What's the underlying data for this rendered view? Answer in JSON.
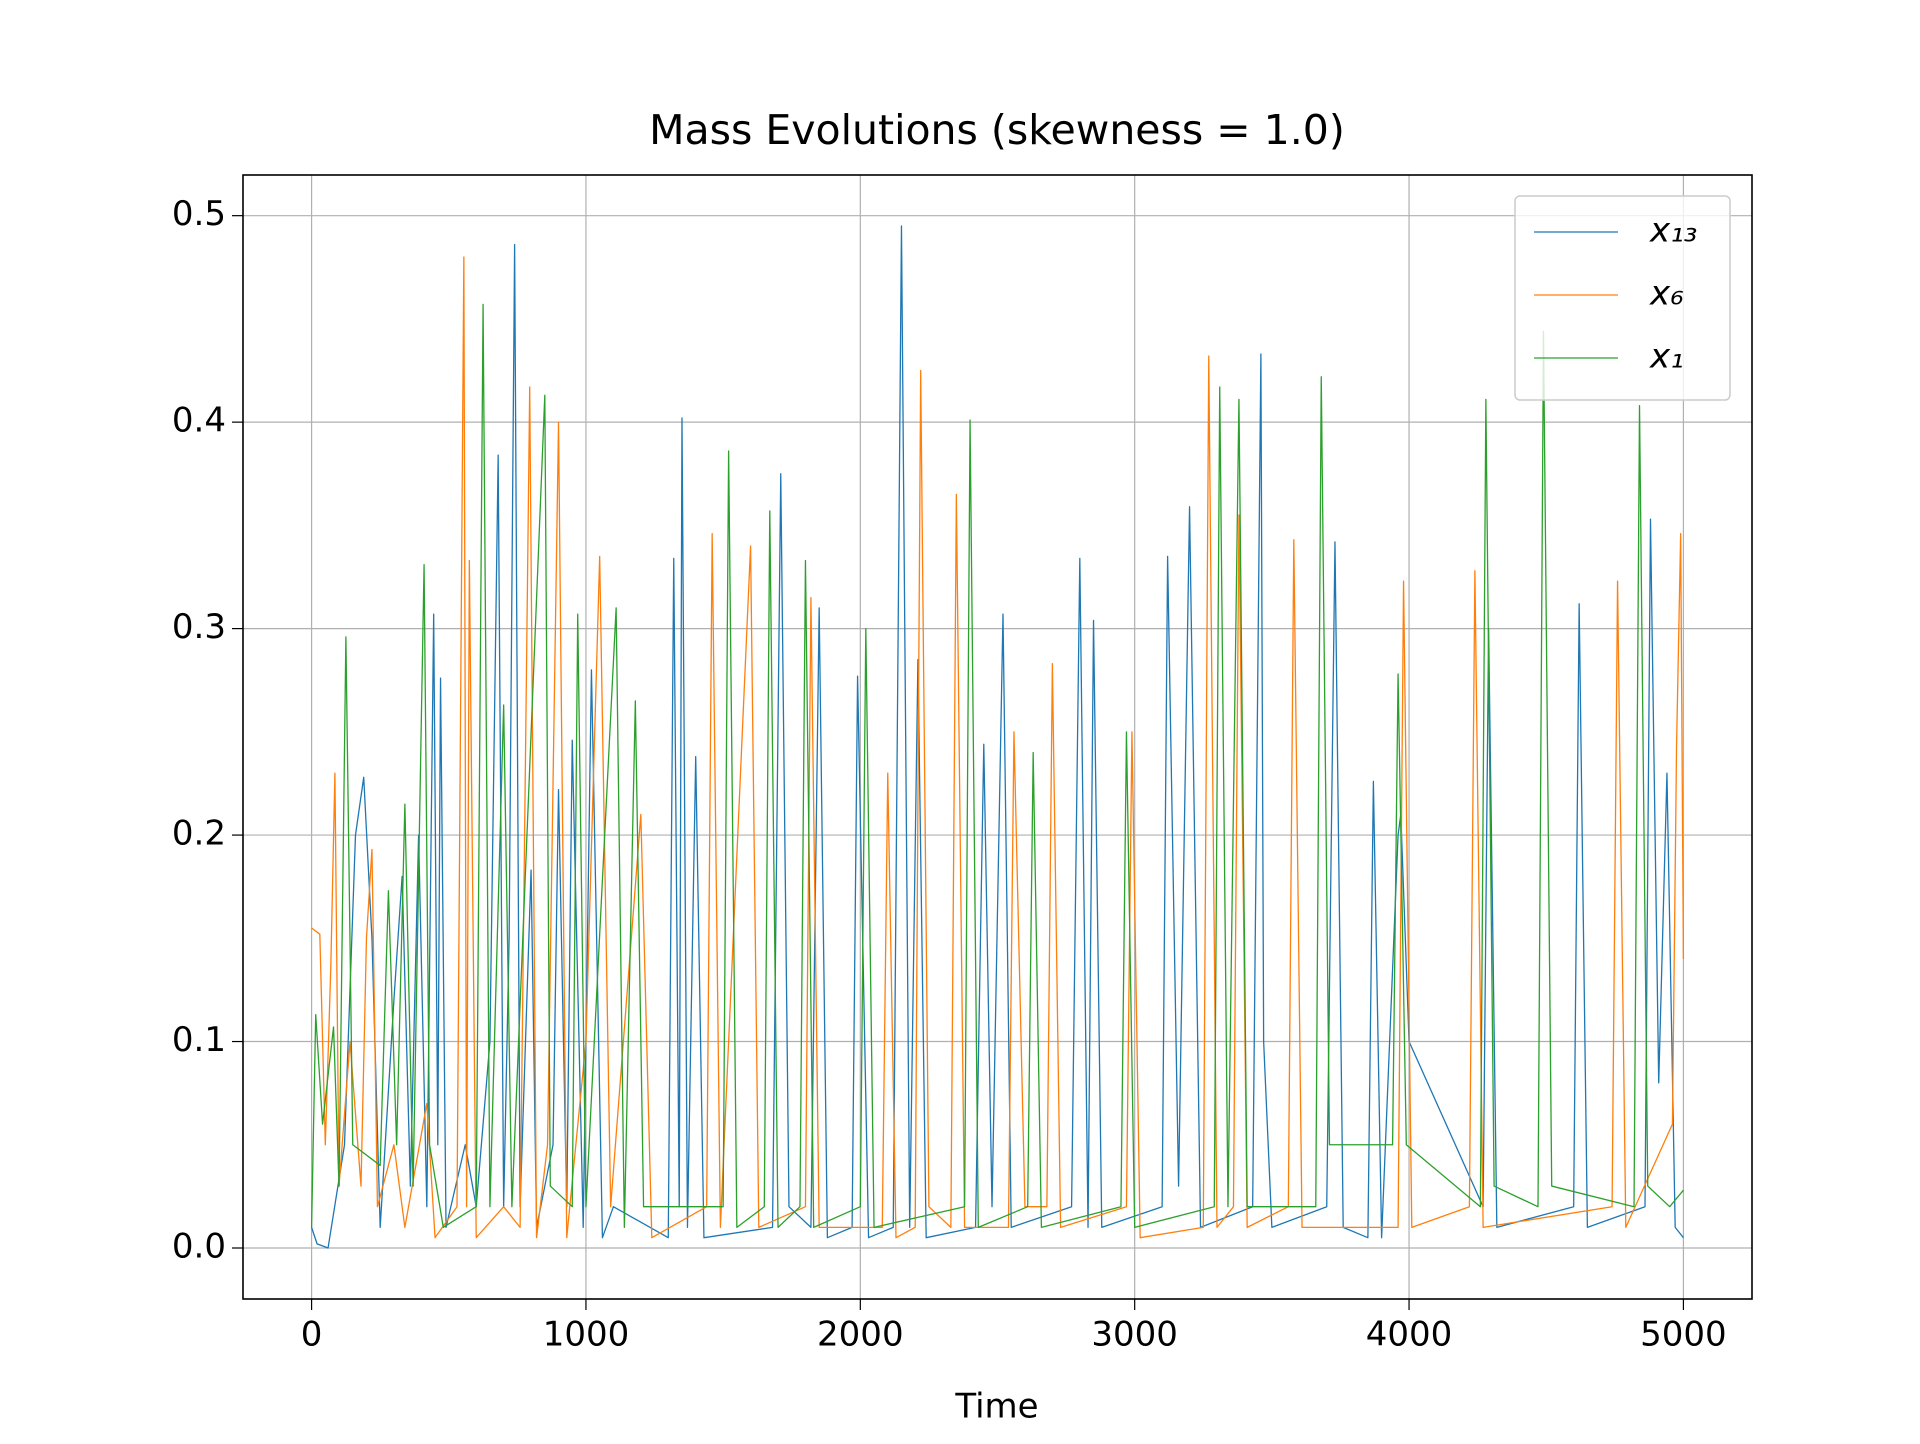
{
  "chart_data": {
    "type": "line",
    "title": "Mass Evolutions (skewness = 1.0)",
    "x_label": "Time",
    "xlim": [
      -250,
      5250
    ],
    "ylim": [
      -0.0247,
      0.5197
    ],
    "xticks": [
      0,
      1000,
      2000,
      3000,
      4000,
      5000
    ],
    "yticks": [
      {
        "value": 0,
        "label": "0.0"
      },
      0.1,
      0.2,
      0.3,
      0.4,
      0.5
    ],
    "grid": true,
    "legend": "upper right",
    "series": [
      {
        "name": "x₁₃",
        "color": "#1f77b4",
        "x": [
          0,
          20,
          60,
          120,
          160,
          190,
          220,
          250,
          300,
          330,
          360,
          390,
          420,
          445,
          460,
          470,
          490,
          560,
          600,
          650,
          680,
          700,
          720,
          740,
          760,
          800,
          820,
          880,
          900,
          930,
          950,
          990,
          1020,
          1060,
          1100,
          1300,
          1320,
          1340,
          1350,
          1370,
          1400,
          1430,
          1680,
          1710,
          1740,
          1820,
          1850,
          1880,
          1970,
          1990,
          2030,
          2120,
          2150,
          2180,
          2210,
          2240,
          2420,
          2450,
          2480,
          2520,
          2550,
          2770,
          2800,
          2830,
          2850,
          2880,
          3100,
          3120,
          3160,
          3200,
          3240,
          3430,
          3460,
          3470,
          3500,
          3700,
          3730,
          3760,
          3850,
          3870,
          3900,
          3960,
          3970,
          4000,
          4270,
          4290,
          4320,
          4600,
          4620,
          4650,
          4860,
          4880,
          4910,
          4940,
          4970,
          5000
        ],
        "values": [
          0.01,
          0.002,
          0,
          0.05,
          0.2,
          0.228,
          0.15,
          0.01,
          0.12,
          0.18,
          0.03,
          0.2,
          0.02,
          0.307,
          0.05,
          0.276,
          0.01,
          0.05,
          0.02,
          0.1,
          0.384,
          0.02,
          0.15,
          0.486,
          0.02,
          0.183,
          0.01,
          0.05,
          0.222,
          0.02,
          0.246,
          0.01,
          0.28,
          0.005,
          0.02,
          0.005,
          0.334,
          0.02,
          0.402,
          0.01,
          0.238,
          0.005,
          0.01,
          0.375,
          0.02,
          0.01,
          0.31,
          0.005,
          0.01,
          0.277,
          0.005,
          0.01,
          0.495,
          0.01,
          0.285,
          0.005,
          0.01,
          0.244,
          0.02,
          0.307,
          0.01,
          0.02,
          0.334,
          0.01,
          0.304,
          0.01,
          0.02,
          0.335,
          0.03,
          0.359,
          0.01,
          0.02,
          0.433,
          0.1,
          0.01,
          0.02,
          0.342,
          0.01,
          0.005,
          0.226,
          0.005,
          0.2,
          0.21,
          0.1,
          0.02,
          0.3,
          0.01,
          0.02,
          0.312,
          0.01,
          0.02,
          0.353,
          0.08,
          0.23,
          0.01,
          0.005
        ]
      },
      {
        "name": "x₆",
        "color": "#ff7f0e",
        "x": [
          0,
          30,
          50,
          70,
          85,
          100,
          140,
          180,
          200,
          220,
          240,
          300,
          340,
          420,
          450,
          530,
          555,
          565,
          575,
          600,
          700,
          760,
          795,
          820,
          860,
          900,
          930,
          1000,
          1050,
          1090,
          1200,
          1240,
          1440,
          1460,
          1490,
          1600,
          1630,
          1800,
          1820,
          1850,
          2080,
          2100,
          2130,
          2200,
          2220,
          2250,
          2330,
          2350,
          2380,
          2540,
          2560,
          2600,
          2680,
          2700,
          2730,
          2970,
          2990,
          3020,
          3250,
          3270,
          3300,
          3360,
          3380,
          3410,
          3560,
          3580,
          3610,
          3960,
          3980,
          4010,
          4220,
          4240,
          4270,
          4740,
          4760,
          4790,
          4960,
          4975,
          4990,
          5000
        ],
        "values": [
          0.155,
          0.152,
          0.05,
          0.136,
          0.23,
          0.03,
          0.1,
          0.03,
          0.15,
          0.193,
          0.02,
          0.05,
          0.01,
          0.07,
          0.005,
          0.02,
          0.48,
          0.02,
          0.333,
          0.005,
          0.02,
          0.01,
          0.417,
          0.005,
          0.05,
          0.4,
          0.005,
          0.1,
          0.335,
          0.02,
          0.21,
          0.005,
          0.02,
          0.346,
          0.01,
          0.34,
          0.01,
          0.02,
          0.315,
          0.01,
          0.01,
          0.23,
          0.005,
          0.01,
          0.425,
          0.02,
          0.01,
          0.365,
          0.01,
          0.01,
          0.25,
          0.02,
          0.02,
          0.283,
          0.01,
          0.02,
          0.25,
          0.005,
          0.01,
          0.432,
          0.01,
          0.02,
          0.355,
          0.01,
          0.02,
          0.343,
          0.01,
          0.01,
          0.323,
          0.01,
          0.02,
          0.328,
          0.01,
          0.02,
          0.323,
          0.01,
          0.06,
          0.243,
          0.346,
          0.14
        ]
      },
      {
        "name": "x₁",
        "color": "#2ca02c",
        "x": [
          0,
          15,
          40,
          80,
          100,
          125,
          150,
          250,
          280,
          310,
          340,
          370,
          410,
          430,
          480,
          600,
          625,
          650,
          700,
          730,
          850,
          870,
          950,
          970,
          1000,
          1110,
          1140,
          1180,
          1210,
          1500,
          1520,
          1550,
          1650,
          1670,
          1700,
          1780,
          1800,
          1830,
          2000,
          2020,
          2050,
          2380,
          2400,
          2430,
          2610,
          2630,
          2660,
          2950,
          2970,
          3000,
          3290,
          3310,
          3340,
          3380,
          3410,
          3660,
          3680,
          3710,
          3940,
          3960,
          3990,
          4260,
          4280,
          4310,
          4470,
          4490,
          4520,
          4820,
          4840,
          4870,
          4950,
          5000
        ],
        "values": [
          0.01,
          0.113,
          0.06,
          0.107,
          0.03,
          0.296,
          0.05,
          0.04,
          0.173,
          0.05,
          0.215,
          0.03,
          0.331,
          0.05,
          0.01,
          0.02,
          0.457,
          0.02,
          0.263,
          0.02,
          0.413,
          0.03,
          0.02,
          0.307,
          0.02,
          0.31,
          0.01,
          0.265,
          0.02,
          0.02,
          0.386,
          0.01,
          0.02,
          0.357,
          0.01,
          0.02,
          0.333,
          0.01,
          0.02,
          0.3,
          0.01,
          0.02,
          0.401,
          0.01,
          0.02,
          0.24,
          0.01,
          0.02,
          0.25,
          0.01,
          0.02,
          0.417,
          0.02,
          0.411,
          0.02,
          0.02,
          0.422,
          0.05,
          0.05,
          0.278,
          0.05,
          0.02,
          0.411,
          0.03,
          0.02,
          0.444,
          0.03,
          0.02,
          0.408,
          0.03,
          0.02,
          0.028
        ]
      }
    ]
  }
}
